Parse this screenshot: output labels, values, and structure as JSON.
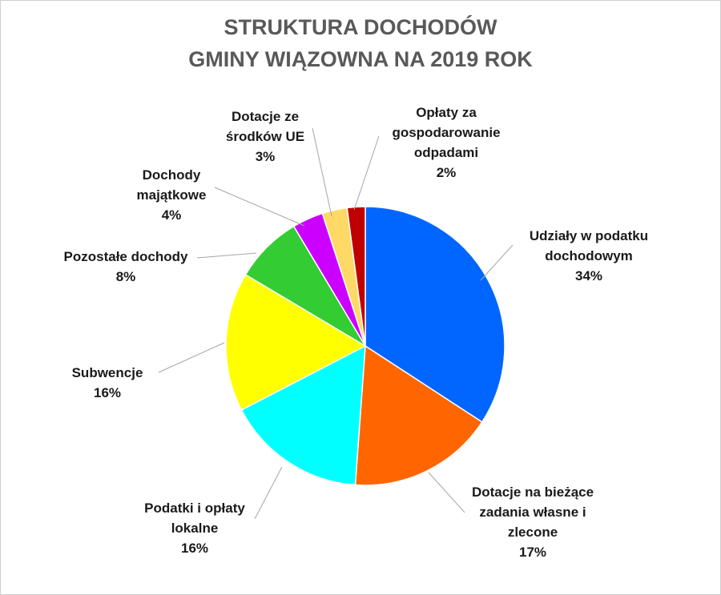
{
  "chart_data": {
    "type": "pie",
    "title_lines": [
      "STRUKTURA DOCHODÓW",
      "GMINY WIĄZOWNA NA 2019 ROK"
    ],
    "slices": [
      {
        "label_lines": [
          "Udziały w podatku",
          "dochodowym"
        ],
        "pct_label": "34%",
        "value": 34.3,
        "color": "#0066ff"
      },
      {
        "label_lines": [
          "Dotacje na bieżące",
          "zadania własne i",
          "zlecone"
        ],
        "pct_label": "17%",
        "value": 17.0,
        "color": "#ff6600"
      },
      {
        "label_lines": [
          "Podatki i opłaty",
          "lokalne"
        ],
        "pct_label": "16%",
        "value": 16.3,
        "color": "#00ffff"
      },
      {
        "label_lines": [
          "Subwencje"
        ],
        "pct_label": "16%",
        "value": 16.2,
        "color": "#ffff00"
      },
      {
        "label_lines": [
          "Pozostałe dochody"
        ],
        "pct_label": "8%",
        "value": 7.9,
        "color": "#33cc33"
      },
      {
        "label_lines": [
          "Dochody",
          "majątkowe"
        ],
        "pct_label": "4%",
        "value": 3.6,
        "color": "#cc00ff"
      },
      {
        "label_lines": [
          "Dotacje ze",
          "środków UE"
        ],
        "pct_label": "3%",
        "value": 2.9,
        "color": "#ffd966"
      },
      {
        "label_lines": [
          "Opłaty za",
          "gospodarowanie",
          "odpadami"
        ],
        "pct_label": "2%",
        "value": 2.1,
        "color": "#c00000"
      }
    ],
    "legend": "none",
    "data_labels": "outside with leader lines"
  }
}
